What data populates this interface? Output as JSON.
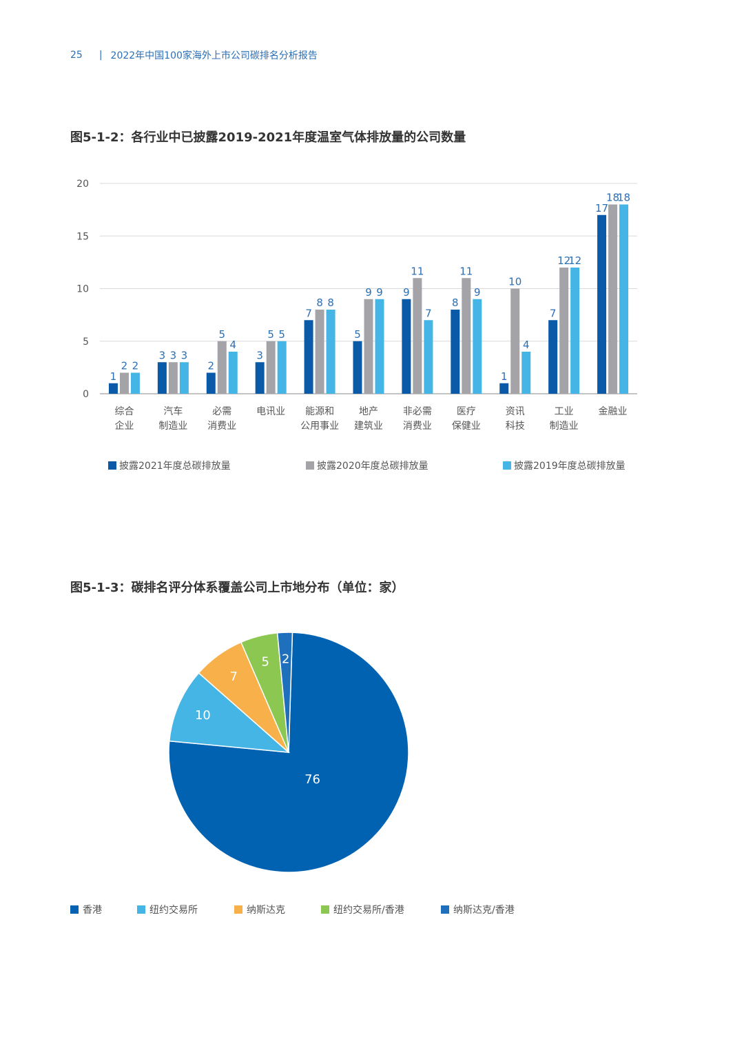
{
  "header": {
    "page_number": "25",
    "title": "2022年中国100家海外上市公司碳排名分析报告"
  },
  "figures": {
    "bar_title": "图5-1-2：各行业中已披露2019-2021年度温室气体排放量的公司数量",
    "pie_title": "图5-1-3：碳排名评分体系覆盖公司上市地分布（单位：家）"
  },
  "colors": {
    "dark_blue": "#0a5aa8",
    "gray": "#a3a3a8",
    "light_blue": "#45b5e6",
    "orange": "#f7b04a",
    "green": "#8cc751",
    "mid_blue": "#1e70bc",
    "hk_blue": "#0062b1"
  },
  "chart_data": [
    {
      "type": "bar",
      "categories": [
        "综合\n企业",
        "汽车\n制造业",
        "必需\n消费业",
        "电讯业",
        "能源和\n公用事业",
        "地产\n建筑业",
        "非必需\n消费业",
        "医疗\n保健业",
        "资讯\n科技",
        "工业\n制造业",
        "金融业"
      ],
      "series": [
        {
          "name": "披露2021年度总碳排放量",
          "color": "#0a5aa8",
          "values": [
            1,
            3,
            2,
            3,
            7,
            5,
            9,
            8,
            1,
            7,
            17
          ]
        },
        {
          "name": "披露2020年度总碳排放量",
          "color": "#a3a3a8",
          "values": [
            2,
            3,
            5,
            5,
            8,
            9,
            11,
            11,
            10,
            12,
            18
          ]
        },
        {
          "name": "披露2019年度总碳排放量",
          "color": "#45b5e6",
          "values": [
            2,
            3,
            4,
            5,
            8,
            9,
            7,
            9,
            4,
            12,
            18
          ]
        }
      ],
      "ylim": [
        0,
        20
      ],
      "yticks": [
        0,
        5,
        10,
        15,
        20
      ],
      "grid": true,
      "legend_position": "bottom"
    },
    {
      "type": "pie",
      "slices": [
        {
          "label": "香港",
          "value": 76,
          "color": "#0062b1"
        },
        {
          "label": "纽约交易所",
          "value": 10,
          "color": "#45b5e6"
        },
        {
          "label": "纳斯达克",
          "value": 7,
          "color": "#f7b04a"
        },
        {
          "label": "纽约交易所/香港",
          "value": 5,
          "color": "#8cc751"
        },
        {
          "label": "纳斯达克/香港",
          "value": 2,
          "color": "#1e70bc"
        }
      ],
      "legend_position": "bottom"
    }
  ]
}
